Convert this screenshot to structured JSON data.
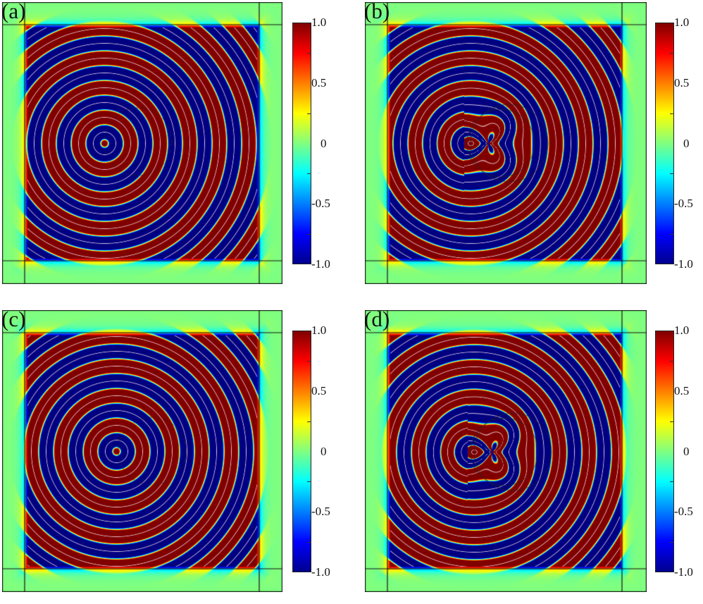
{
  "chart_data": {
    "type": "heatmap",
    "panels": [
      {
        "label": "(a)"
      },
      {
        "label": "(b)"
      },
      {
        "label": "(c)"
      },
      {
        "label": "(d)"
      }
    ],
    "colorbar": {
      "range": [
        -1.0,
        1.0
      ],
      "ticks": [
        "1.0",
        "0.5",
        "0",
        "-0.5",
        "-1.0"
      ],
      "colormap": "jet"
    },
    "colors": {
      "background": "#80ff80",
      "positive": "#ff0000",
      "negative": "#0000ff"
    }
  }
}
